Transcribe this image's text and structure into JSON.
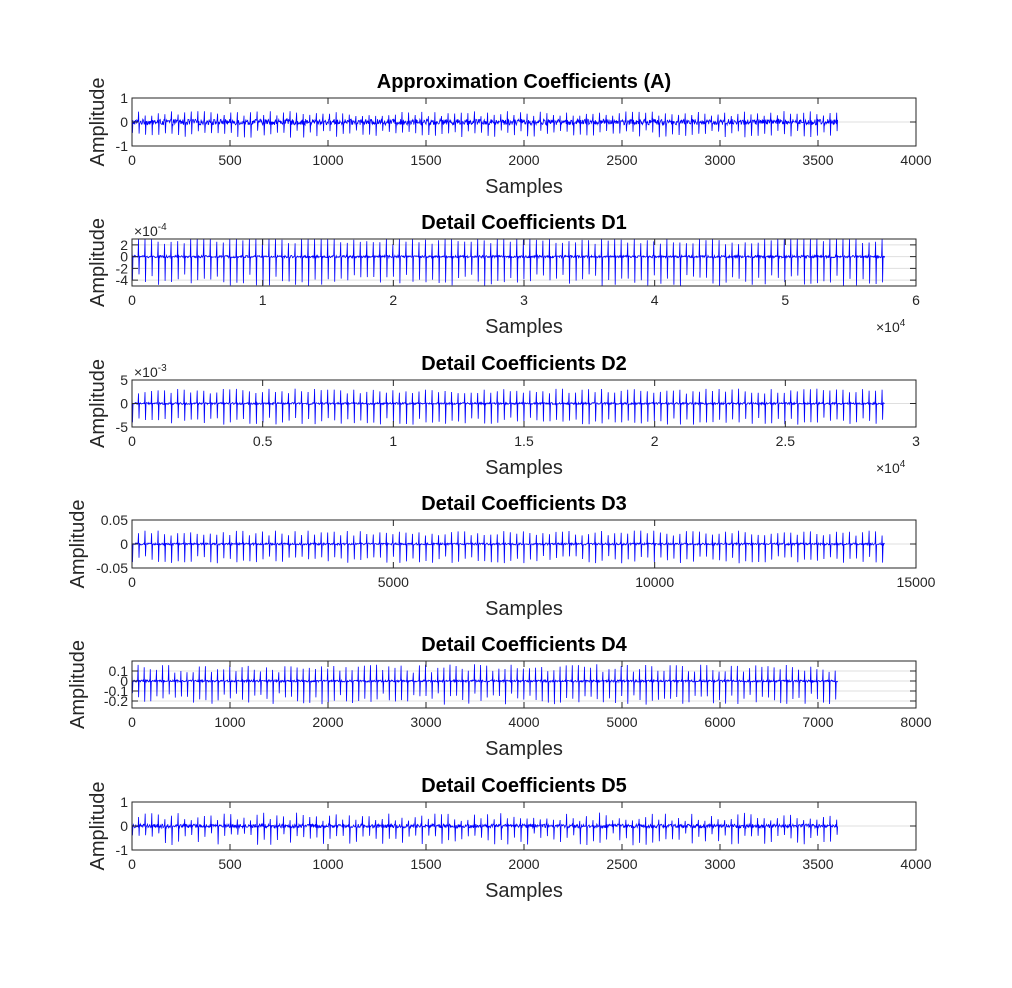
{
  "figure": {
    "line_color": "#0000ff",
    "axis_color": "#262626",
    "grid_color": "#dfdfdf"
  },
  "chart_data": [
    {
      "type": "line",
      "title": "Approximation Coefficients (A)",
      "xlabel": "Samples",
      "ylabel": "Amplitude",
      "xlim": [
        0,
        4000
      ],
      "ylim": [
        -1,
        1
      ],
      "xticks": [
        0,
        500,
        1000,
        1500,
        2000,
        2500,
        3000,
        3500,
        4000
      ],
      "xtick_labels": [
        "0",
        "500",
        "1000",
        "1500",
        "2000",
        "2500",
        "3000",
        "3500",
        "4000"
      ],
      "yticks": [
        -1,
        0,
        1
      ],
      "ytick_labels": [
        "-1",
        "0",
        "1"
      ],
      "x_multiplier": "",
      "y_multiplier": "",
      "signal": {
        "n_samples": 3600,
        "beats": 110,
        "spike_amplitude": [
          0.35,
          0.65
        ],
        "noise": 0.12
      }
    },
    {
      "type": "line",
      "title": "Detail Coefficients D1",
      "xlabel": "Samples",
      "ylabel": "Amplitude",
      "xlim": [
        0,
        60000
      ],
      "ylim": [
        -0.0005,
        0.0003
      ],
      "xticks": [
        0,
        10000,
        20000,
        30000,
        40000,
        50000,
        60000
      ],
      "xtick_labels": [
        "0",
        "1",
        "2",
        "3",
        "4",
        "5",
        "6"
      ],
      "yticks": [
        -0.0004,
        -0.0002,
        0,
        0.0002
      ],
      "ytick_labels": [
        "-4",
        "-2",
        "0",
        "2"
      ],
      "x_multiplier": "×10",
      "x_multiplier_exp": "4",
      "y_multiplier": "×10",
      "y_multiplier_exp": "-4",
      "signal": {
        "n_samples": 57600,
        "beats": 120,
        "spike_amplitude": [
          0.0003,
          0.0005
        ],
        "noise": 2e-05
      }
    },
    {
      "type": "line",
      "title": "Detail Coefficients D2",
      "xlabel": "Samples",
      "ylabel": "Amplitude",
      "xlim": [
        0,
        30000
      ],
      "ylim": [
        -0.005,
        0.005
      ],
      "xticks": [
        0,
        5000,
        10000,
        15000,
        20000,
        25000,
        30000
      ],
      "xtick_labels": [
        "0",
        "0.5",
        "1",
        "1.5",
        "2",
        "2.5",
        "3"
      ],
      "yticks": [
        -0.005,
        0,
        0.005
      ],
      "ytick_labels": [
        "-5",
        "0",
        "5"
      ],
      "x_multiplier": "×10",
      "x_multiplier_exp": "4",
      "y_multiplier": "×10",
      "y_multiplier_exp": "-3",
      "signal": {
        "n_samples": 28800,
        "beats": 120,
        "spike_amplitude": [
          0.003,
          0.0045
        ],
        "noise": 0.0002
      }
    },
    {
      "type": "line",
      "title": "Detail Coefficients D3",
      "xlabel": "Samples",
      "ylabel": "Amplitude",
      "xlim": [
        0,
        15000
      ],
      "ylim": [
        -0.05,
        0.05
      ],
      "xticks": [
        0,
        5000,
        10000,
        15000
      ],
      "xtick_labels": [
        "0",
        "5000",
        "10000",
        "15000"
      ],
      "yticks": [
        -0.05,
        0,
        0.05
      ],
      "ytick_labels": [
        "-0.05",
        "0",
        "0.05"
      ],
      "x_multiplier": "",
      "y_multiplier": "",
      "signal": {
        "n_samples": 14400,
        "beats": 120,
        "spike_amplitude": [
          0.025,
          0.04
        ],
        "noise": 0.002
      }
    },
    {
      "type": "line",
      "title": "Detail Coefficients D4",
      "xlabel": "Samples",
      "ylabel": "Amplitude",
      "xlim": [
        0,
        8000
      ],
      "ylim": [
        -0.27,
        0.2
      ],
      "xticks": [
        0,
        1000,
        2000,
        3000,
        4000,
        5000,
        6000,
        7000,
        8000
      ],
      "xtick_labels": [
        "0",
        "1000",
        "2000",
        "3000",
        "4000",
        "5000",
        "6000",
        "7000",
        "8000"
      ],
      "yticks": [
        -0.2,
        -0.1,
        0,
        0.1
      ],
      "ytick_labels": [
        "-0.2",
        "-0.1",
        "0",
        "0.1"
      ],
      "x_multiplier": "",
      "y_multiplier": "",
      "signal": {
        "n_samples": 7200,
        "beats": 115,
        "spike_amplitude": [
          0.12,
          0.24
        ],
        "noise": 0.01
      }
    },
    {
      "type": "line",
      "title": "Detail Coefficients D5",
      "xlabel": "Samples",
      "ylabel": "Amplitude",
      "xlim": [
        0,
        4000
      ],
      "ylim": [
        -1,
        1
      ],
      "xticks": [
        0,
        500,
        1000,
        1500,
        2000,
        2500,
        3000,
        3500,
        4000
      ],
      "xtick_labels": [
        "0",
        "500",
        "1000",
        "1500",
        "2000",
        "2500",
        "3000",
        "3500",
        "4000"
      ],
      "yticks": [
        -1,
        0,
        1
      ],
      "ytick_labels": [
        "-1",
        "0",
        "1"
      ],
      "x_multiplier": "",
      "y_multiplier": "",
      "signal": {
        "n_samples": 3600,
        "beats": 110,
        "spike_amplitude": [
          0.3,
          0.8
        ],
        "noise": 0.08
      }
    }
  ]
}
